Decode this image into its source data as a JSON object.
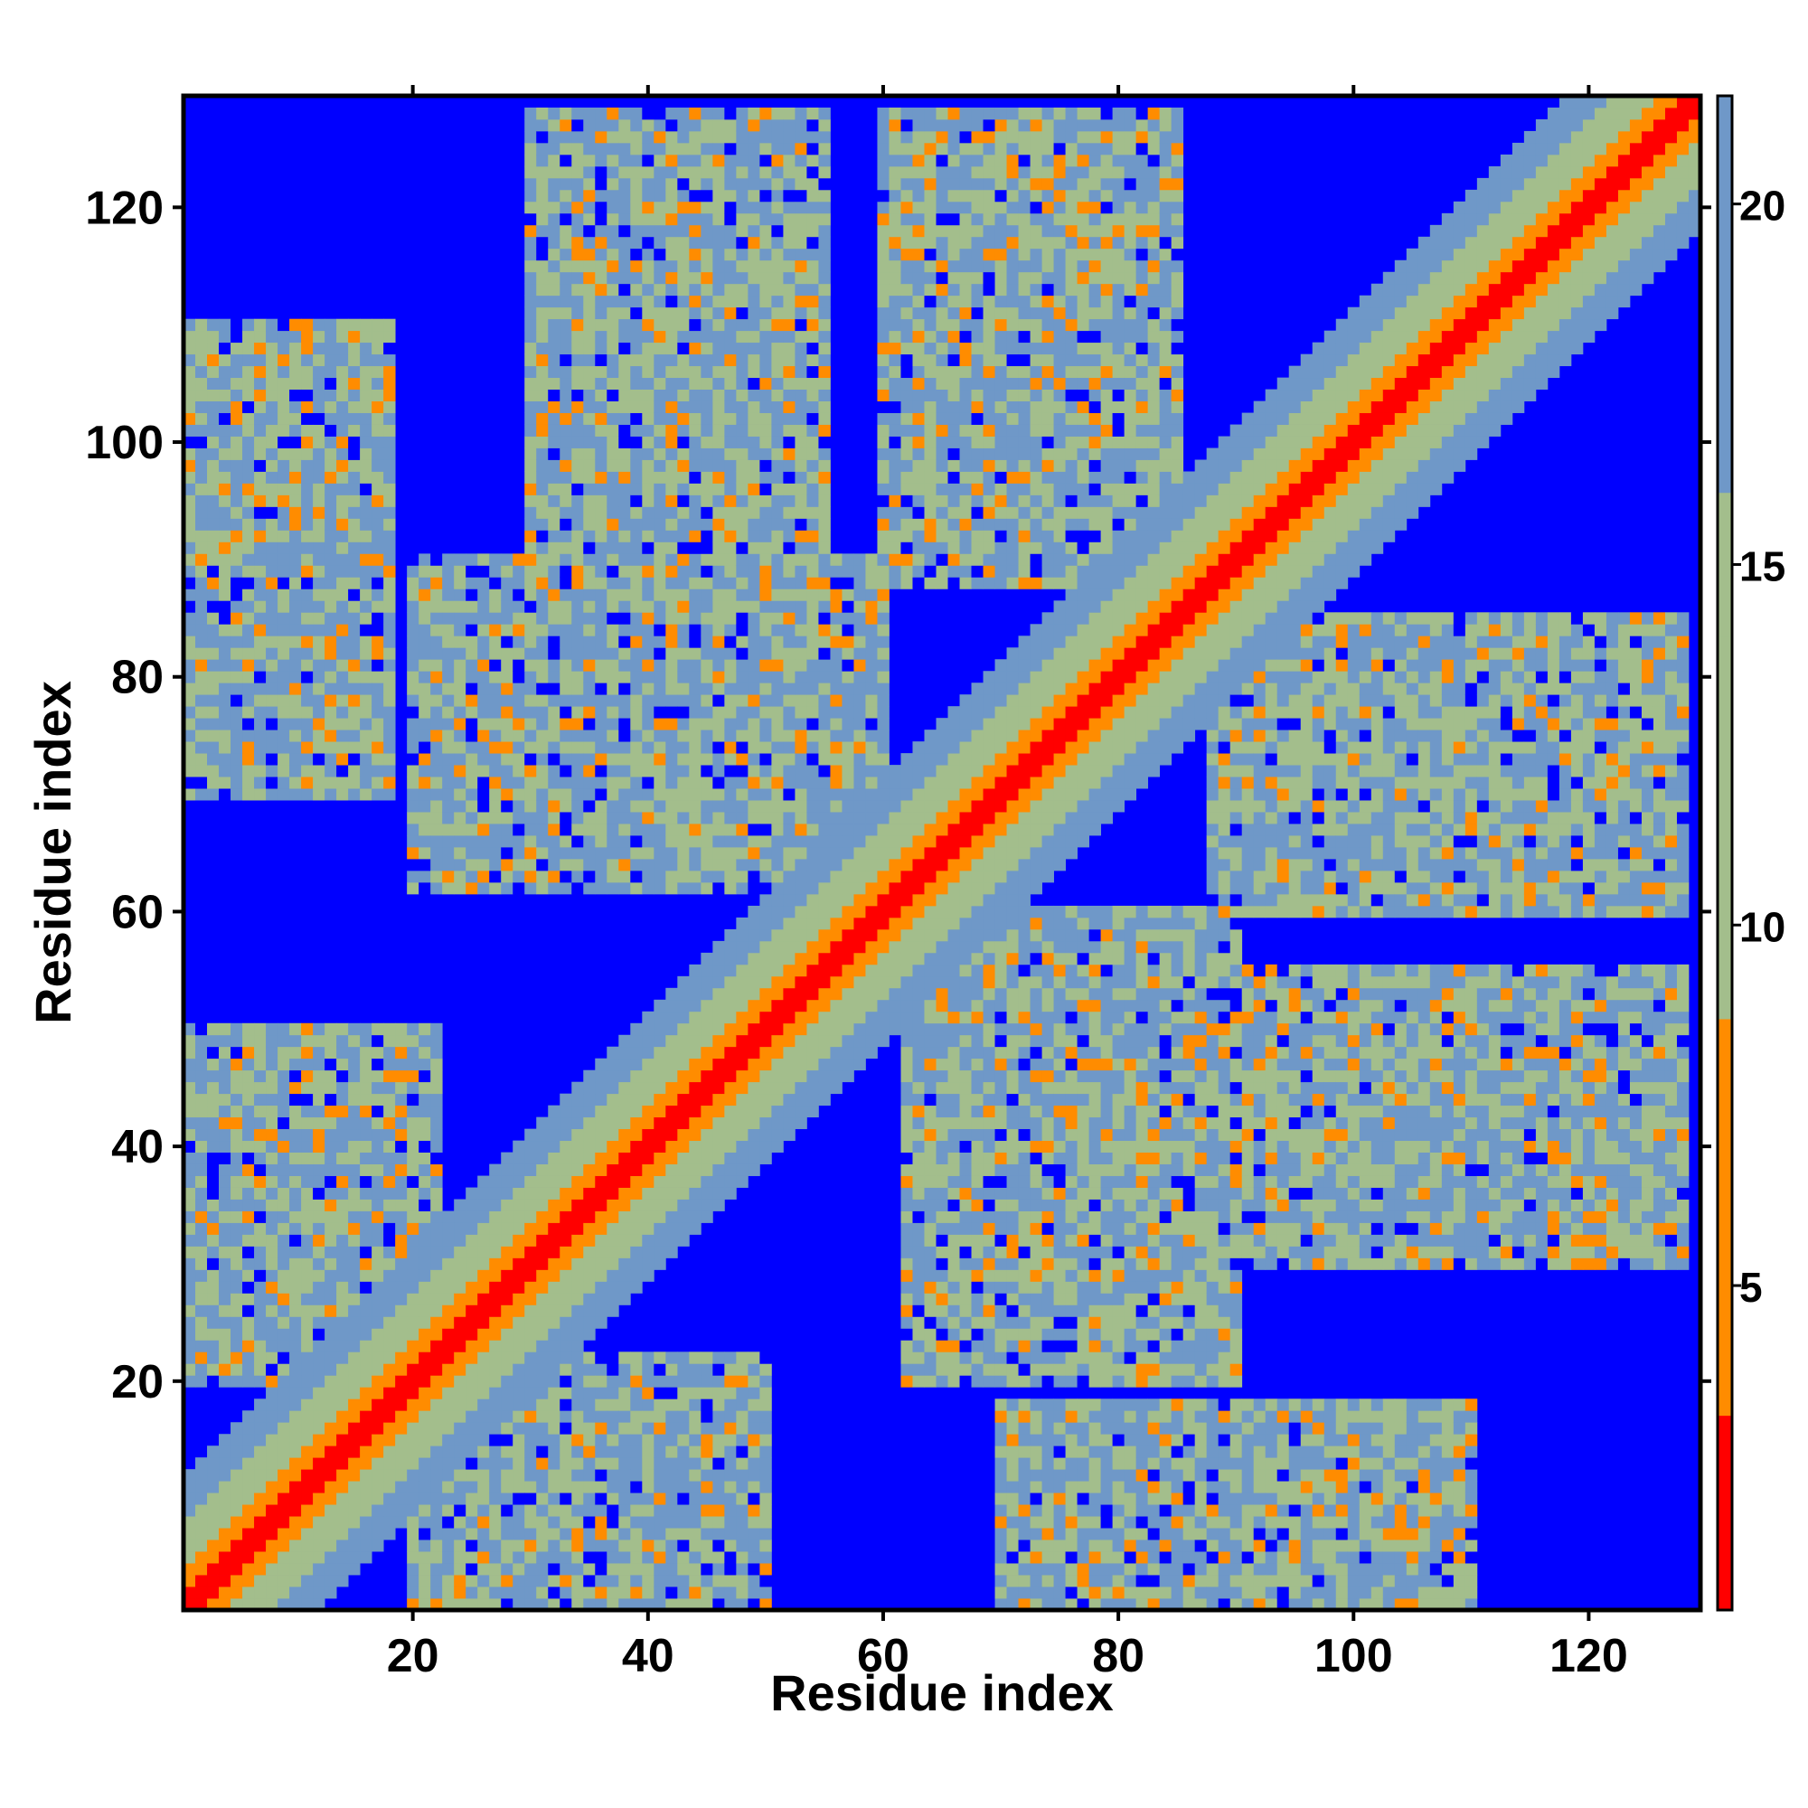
{
  "chart_data": {
    "type": "heatmap",
    "title": "",
    "xlabel": "Residue index",
    "ylabel": "Residue index",
    "n_residues": 129,
    "xlim": [
      0.5,
      129.5
    ],
    "ylim": [
      0.5,
      129.5
    ],
    "x_ticks": [
      20,
      40,
      60,
      80,
      100,
      120
    ],
    "y_ticks": [
      20,
      40,
      60,
      80,
      100,
      120
    ],
    "colorbar": {
      "ticks": [
        5,
        10,
        15,
        20
      ],
      "range": [
        0.5,
        21.5
      ],
      "orientation": "vertical",
      "placement": "right"
    },
    "colors": {
      "background": "#0000ff",
      "near": "#ff0000",
      "close": "#ff8c00",
      "mid": "#a3be8c",
      "far_mid": "#6f98c8",
      "far": "#0000ff"
    },
    "matrix_pattern": {
      "description_free": true,
      "diagonal_band_widths": [
        1.5,
        3.5,
        7.5,
        11.5
      ],
      "off_diagonal_regions": [
        {
          "x": [
            1,
            18
          ],
          "y": [
            70,
            110
          ]
        },
        {
          "x": [
            70,
            110
          ],
          "y": [
            1,
            18
          ]
        },
        {
          "x": [
            20,
            60
          ],
          "y": [
            62,
            90
          ]
        },
        {
          "x": [
            62,
            90
          ],
          "y": [
            20,
            60
          ]
        },
        {
          "x": [
            60,
            85
          ],
          "y": [
            88,
            128
          ]
        },
        {
          "x": [
            88,
            128
          ],
          "y": [
            60,
            85
          ]
        },
        {
          "x": [
            1,
            22
          ],
          "y": [
            20,
            50
          ]
        },
        {
          "x": [
            20,
            50
          ],
          "y": [
            1,
            22
          ]
        },
        {
          "x": [
            30,
            55
          ],
          "y": [
            85,
            128
          ]
        },
        {
          "x": [
            85,
            128
          ],
          "y": [
            30,
            55
          ]
        }
      ]
    }
  }
}
